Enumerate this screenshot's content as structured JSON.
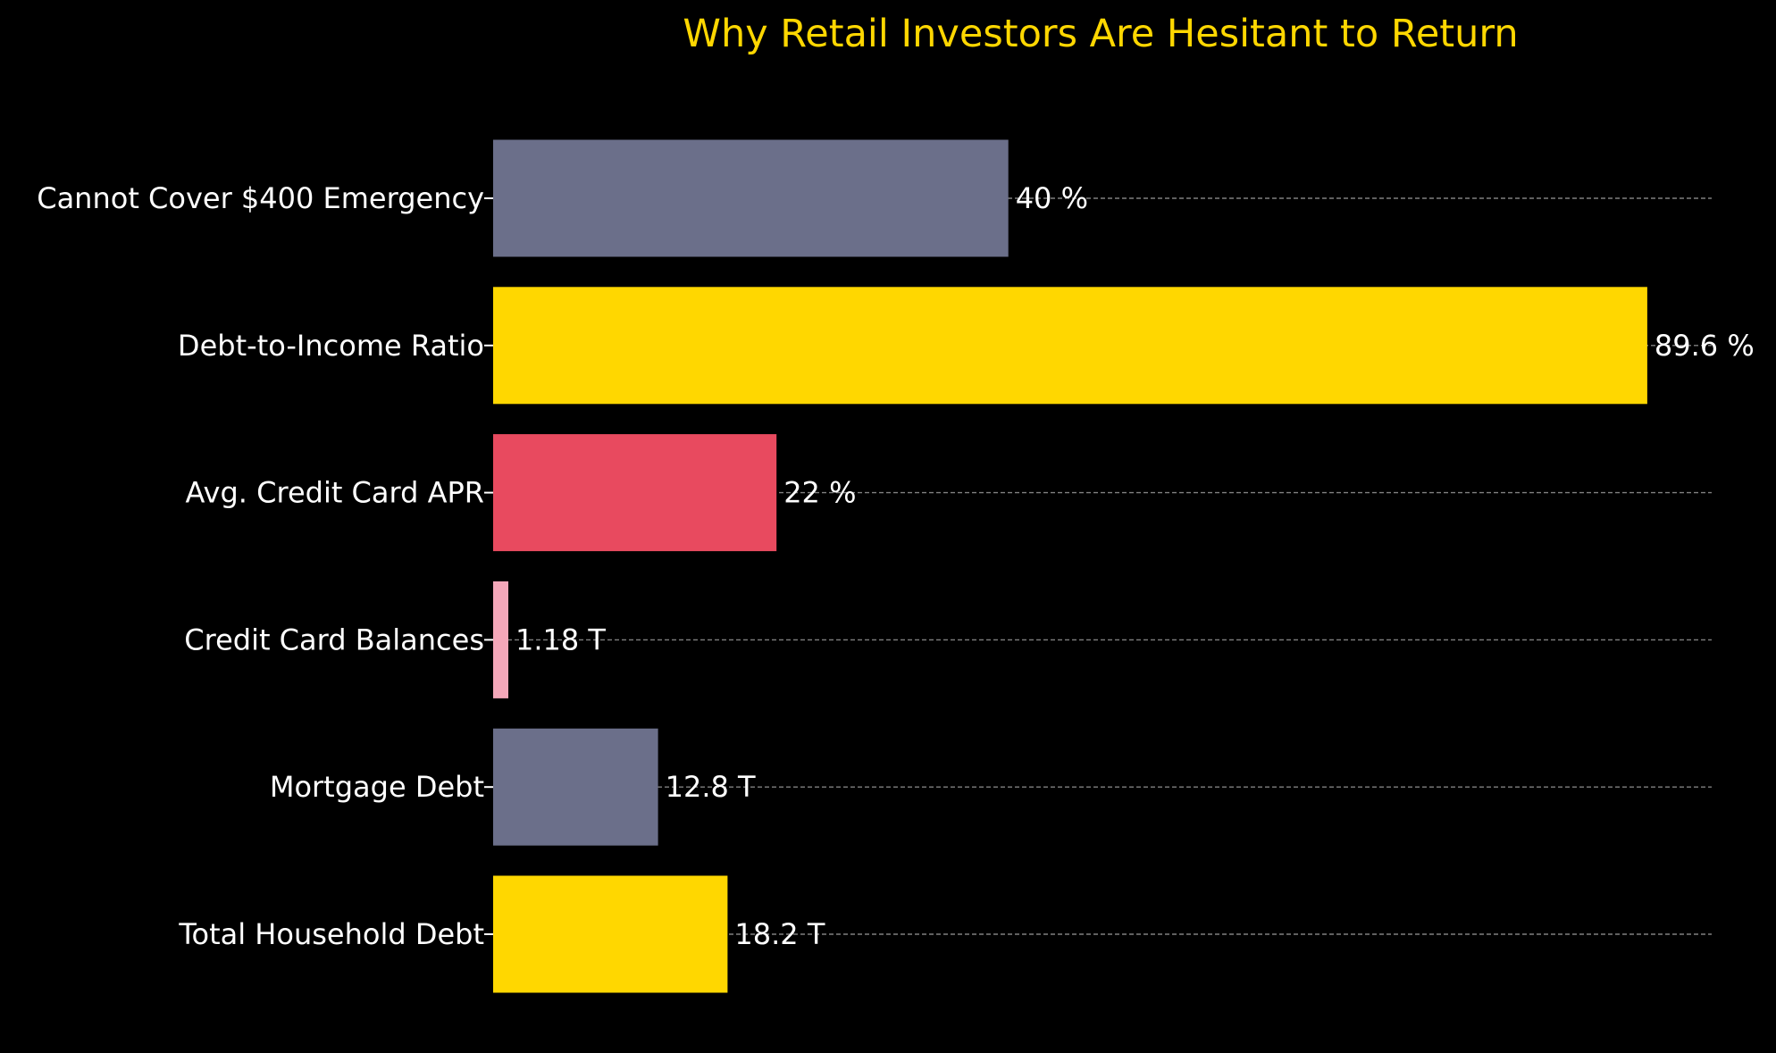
{
  "chart_data": {
    "type": "bar",
    "orientation": "horizontal",
    "title": "Why Retail Investors Are Hesitant to Return",
    "xlabel": "",
    "ylabel": "",
    "grid": true,
    "categories": [
      "Cannot Cover $400 Emergency",
      "Debt-to-Income Ratio",
      "Avg. Credit Card APR",
      "Credit Card Balances",
      "Mortgage Debt",
      "Total Household Debt"
    ],
    "values": [
      40,
      89.6,
      22,
      1.18,
      12.8,
      18.2
    ],
    "value_labels": [
      "40 %",
      "89.6 %",
      "22 %",
      "1.18 T",
      "12.8 T",
      "18.2 T"
    ],
    "xlim": [
      0,
      94.6
    ],
    "bar_colors": [
      "#6b6f8a",
      "#ffd700",
      "#e84a5f",
      "#f4a7b9",
      "#6b6f8a",
      "#ffd700"
    ],
    "colors": {
      "background": "#000000",
      "title": "#ffd700",
      "text": "#ffffff",
      "grid": "#808080"
    }
  }
}
